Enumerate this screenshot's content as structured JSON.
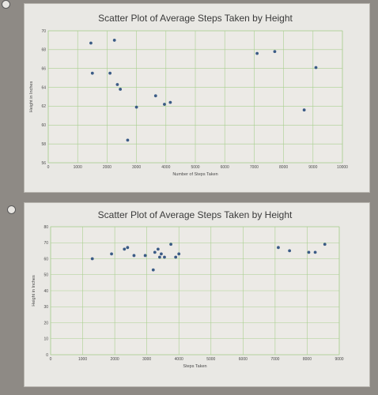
{
  "chart_data": [
    {
      "type": "scatter",
      "title": "Scatter Plot of Average Steps Taken by Height",
      "xlabel": "Number of Steps Taken",
      "ylabel": "Height in Inches",
      "xlim": [
        0,
        10000
      ],
      "ylim": [
        56,
        70
      ],
      "xticks": [
        0,
        1000,
        2000,
        3000,
        4000,
        5000,
        6000,
        7000,
        8000,
        9000,
        10000
      ],
      "yticks": [
        56,
        58,
        60,
        62,
        64,
        66,
        68,
        70
      ],
      "grid": true,
      "points": [
        {
          "x": 1450,
          "y": 68.7
        },
        {
          "x": 2250,
          "y": 69.0
        },
        {
          "x": 1500,
          "y": 65.5
        },
        {
          "x": 2100,
          "y": 65.5
        },
        {
          "x": 2350,
          "y": 64.3
        },
        {
          "x": 2450,
          "y": 63.8
        },
        {
          "x": 2700,
          "y": 58.4
        },
        {
          "x": 3000,
          "y": 61.9
        },
        {
          "x": 3650,
          "y": 63.1
        },
        {
          "x": 3950,
          "y": 62.2
        },
        {
          "x": 4150,
          "y": 62.4
        },
        {
          "x": 7100,
          "y": 67.6
        },
        {
          "x": 7700,
          "y": 67.8
        },
        {
          "x": 8700,
          "y": 61.6
        },
        {
          "x": 9100,
          "y": 66.1
        }
      ]
    },
    {
      "type": "scatter",
      "title": "Scatter Plot of Average Steps Taken by Height",
      "xlabel": "Steps Taken",
      "ylabel": "Height in Inches",
      "xlim": [
        0,
        9000
      ],
      "ylim": [
        0,
        80
      ],
      "xticks": [
        0,
        1000,
        2000,
        3000,
        4000,
        5000,
        6000,
        7000,
        8000,
        9000
      ],
      "yticks": [
        0,
        10,
        20,
        30,
        40,
        50,
        60,
        70,
        80
      ],
      "grid": true,
      "points": [
        {
          "x": 1300,
          "y": 60
        },
        {
          "x": 1900,
          "y": 63
        },
        {
          "x": 2300,
          "y": 66
        },
        {
          "x": 2400,
          "y": 67
        },
        {
          "x": 2600,
          "y": 62
        },
        {
          "x": 2950,
          "y": 62
        },
        {
          "x": 3200,
          "y": 53
        },
        {
          "x": 3250,
          "y": 64
        },
        {
          "x": 3350,
          "y": 66
        },
        {
          "x": 3400,
          "y": 61
        },
        {
          "x": 3450,
          "y": 63
        },
        {
          "x": 3550,
          "y": 61
        },
        {
          "x": 3750,
          "y": 69
        },
        {
          "x": 3900,
          "y": 61
        },
        {
          "x": 4000,
          "y": 63
        },
        {
          "x": 7100,
          "y": 67
        },
        {
          "x": 7450,
          "y": 65
        },
        {
          "x": 8050,
          "y": 64
        },
        {
          "x": 8250,
          "y": 64
        },
        {
          "x": 8550,
          "y": 69
        }
      ]
    }
  ]
}
